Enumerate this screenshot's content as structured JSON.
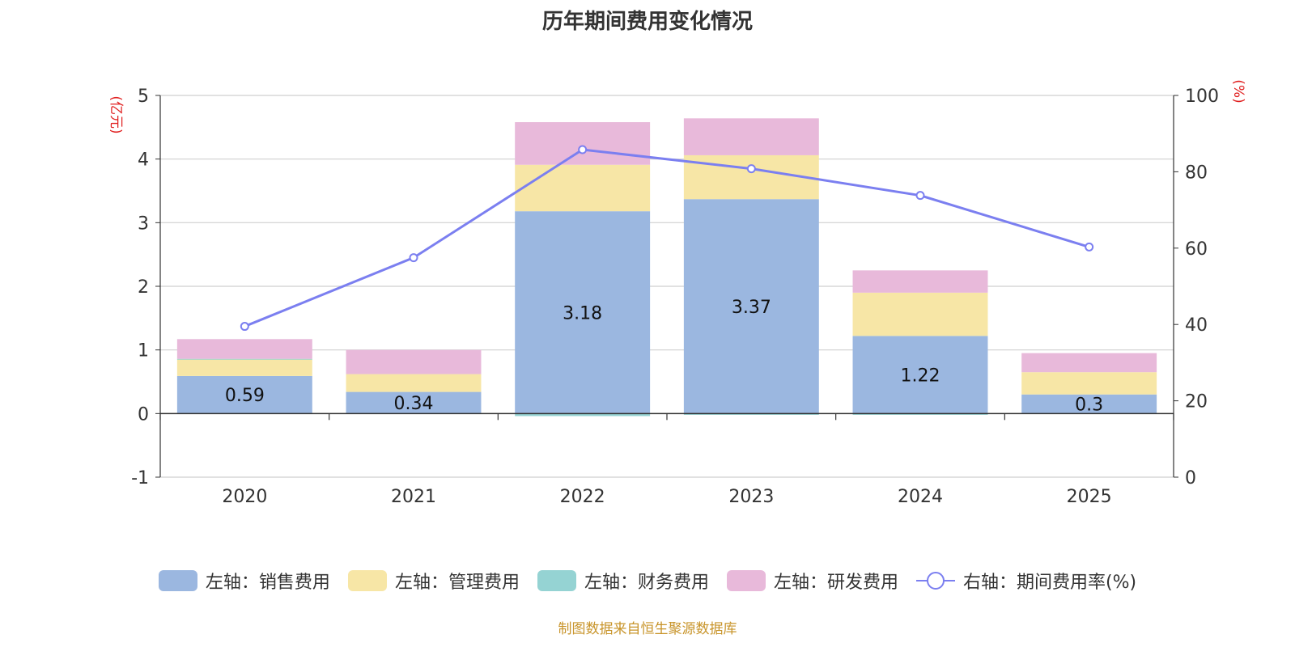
{
  "chart_data": {
    "type": "bar",
    "stacked": true,
    "title": "历年期间费用变化情况",
    "categories": [
      "2020",
      "2021",
      "2022",
      "2023",
      "2024",
      "2025"
    ],
    "series": [
      {
        "name": "左轴：销售费用",
        "axis": "left",
        "values": [
          0.59,
          0.34,
          3.18,
          3.37,
          1.22,
          0.3
        ],
        "color": "#9bb7e0"
      },
      {
        "name": "左轴：管理费用",
        "axis": "left",
        "values": [
          0.26,
          0.28,
          0.73,
          0.69,
          0.68,
          0.35
        ],
        "color": "#f7e6a6"
      },
      {
        "name": "左轴：财务费用",
        "axis": "left",
        "values": [
          0.01,
          0.0,
          -0.04,
          -0.02,
          -0.02,
          0.0
        ],
        "color": "#95d3d3"
      },
      {
        "name": "左轴：研发费用",
        "axis": "left",
        "values": [
          0.31,
          0.38,
          0.67,
          0.58,
          0.35,
          0.3
        ],
        "color": "#e8b9da"
      }
    ],
    "line_series": {
      "name": "右轴：期间费用率(%)",
      "axis": "right",
      "values": [
        39.5,
        57.5,
        85.8,
        80.8,
        73.8,
        60.3
      ],
      "color": "#7b7ff0"
    },
    "data_labels": [
      "0.59",
      "0.34",
      "3.18",
      "3.37",
      "1.22",
      "0.3"
    ],
    "y_left": {
      "label": "(亿元)",
      "min": -1,
      "max": 5,
      "ticks": [
        "-1",
        "0",
        "1",
        "2",
        "3",
        "4",
        "5"
      ]
    },
    "y_right": {
      "label": "(%)",
      "min": 0,
      "max": 100,
      "ticks": [
        "0",
        "20",
        "40",
        "60",
        "80",
        "100"
      ]
    },
    "grid": true,
    "legend_position": "bottom"
  },
  "legend": {
    "items": [
      {
        "label": "左轴：销售费用",
        "color": "#9bb7e0"
      },
      {
        "label": "左轴：管理费用",
        "color": "#f7e6a6"
      },
      {
        "label": "左轴：财务费用",
        "color": "#95d3d3"
      },
      {
        "label": "左轴：研发费用",
        "color": "#e8b9da"
      }
    ],
    "line_label": "右轴：期间费用率(%)"
  },
  "source_text": "制图数据来自恒生聚源数据库"
}
